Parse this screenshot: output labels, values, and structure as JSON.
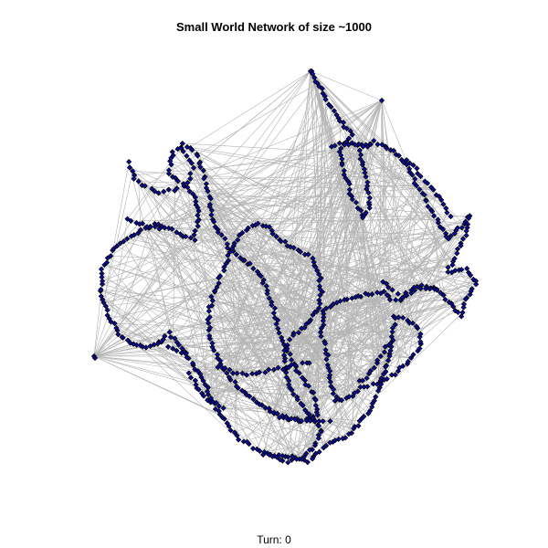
{
  "title": "Small World Network of size ~1000",
  "footer": "Turn: 0",
  "colors": {
    "edge": "#b3b3b3",
    "node_fill": "#0b0b9c",
    "node_stroke": "#000000",
    "background": "#ffffff"
  },
  "network": {
    "type": "small-world",
    "approx_size": 1000
  }
}
